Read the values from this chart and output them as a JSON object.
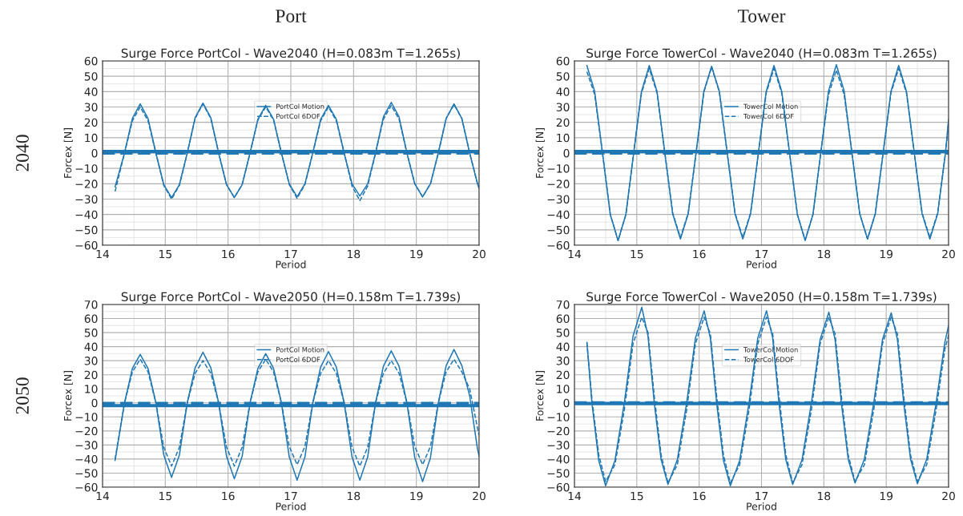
{
  "chart_data": [
    {
      "type": "line",
      "title": "Surge Force PortCol - Wave2040 (H=0.083m T=1.265s)",
      "xlabel": "Period",
      "ylabel": "Forcex [N]",
      "annotations": [
        "Port",
        "2040"
      ],
      "x": [
        14.2,
        14.35,
        14.475,
        14.6,
        14.725,
        14.85,
        14.975,
        15.1,
        15.225,
        15.35,
        15.475,
        15.6,
        15.725,
        15.85,
        15.975,
        16.1,
        16.225,
        16.35,
        16.475,
        16.6,
        16.725,
        16.85,
        16.975,
        17.1,
        17.225,
        17.35,
        17.475,
        17.6,
        17.725,
        17.85,
        17.975,
        18.1,
        18.225,
        18.35,
        18.475,
        18.6,
        18.725,
        18.85,
        18.975,
        19.1,
        19.225,
        19.35,
        19.475,
        19.6,
        19.725,
        19.85,
        19.975,
        20.0
      ],
      "series": [
        {
          "name": "PortCol Motion",
          "color": "#1f77b4",
          "line_style": "solid",
          "values": [
            -22,
            0,
            22.5,
            32,
            22.5,
            0,
            -20.5,
            -29,
            -20.5,
            0,
            23,
            32.5,
            23,
            0,
            -20.5,
            -29,
            -20.5,
            0,
            22,
            31,
            22,
            0,
            -20,
            -28.5,
            -20,
            0,
            22,
            31,
            22,
            0,
            -20,
            -28,
            -20,
            0,
            23.5,
            33,
            23.5,
            0,
            -20,
            -28.5,
            -20,
            0,
            22.5,
            32,
            22.5,
            0,
            -20,
            -23
          ]
        },
        {
          "name": "PortCol 6DOF",
          "color": "#1f77b4",
          "line_style": "dashed",
          "values": [
            -25,
            0,
            21,
            30,
            21,
            0,
            -21,
            -30,
            -21,
            0,
            22.5,
            32,
            22.5,
            0,
            -20.5,
            -29,
            -20.5,
            0,
            21.5,
            30,
            21.5,
            0,
            -20.5,
            -29.5,
            -20.5,
            0,
            21,
            30,
            21,
            0,
            -21.5,
            -31,
            -21.5,
            0,
            22,
            31,
            22,
            0,
            -20,
            -28.5,
            -20,
            0,
            22.5,
            31.5,
            22.5,
            0,
            -20,
            -23
          ]
        }
      ],
      "ref_lines": [
        {
          "axis": "y",
          "value": 1,
          "color": "#1f77b4",
          "line_style": "solid"
        },
        {
          "axis": "y",
          "value": 0,
          "color": "#1f77b4",
          "line_style": "dashed"
        }
      ],
      "xlim": [
        14,
        20
      ],
      "xticks": [
        14,
        15,
        16,
        17,
        18,
        19,
        20
      ],
      "ylim": [
        -60,
        60
      ],
      "yticks": [
        -60,
        -50,
        -40,
        -30,
        -20,
        -10,
        0,
        10,
        20,
        30,
        40,
        50,
        60
      ],
      "grid": true,
      "legend": "top"
    },
    {
      "type": "line",
      "title": "Surge Force TowerCol - Wave2040 (H=0.083m T=1.265s)",
      "xlabel": "Period",
      "ylabel": "Forcex [N]",
      "annotations": [
        "Tower"
      ],
      "x": [
        14.2,
        14.325,
        14.45,
        14.575,
        14.7,
        14.825,
        14.95,
        15.075,
        15.2,
        15.325,
        15.45,
        15.575,
        15.7,
        15.825,
        15.95,
        16.075,
        16.2,
        16.325,
        16.45,
        16.575,
        16.7,
        16.825,
        16.95,
        17.075,
        17.2,
        17.325,
        17.45,
        17.575,
        17.7,
        17.825,
        17.95,
        18.075,
        18.2,
        18.325,
        18.45,
        18.575,
        18.7,
        18.825,
        18.95,
        19.075,
        19.2,
        19.325,
        19.45,
        19.575,
        19.7,
        19.825,
        19.95,
        20.0
      ],
      "series": [
        {
          "name": "TowerCol Motion",
          "color": "#1f77b4",
          "line_style": "solid",
          "values": [
            57,
            40,
            0,
            -40,
            -57,
            -40,
            0,
            40,
            57,
            40,
            0,
            -39.5,
            -56,
            -39.5,
            0,
            40,
            56.5,
            40,
            0,
            -39.5,
            -56,
            -39.5,
            0,
            40,
            57,
            40,
            0,
            -40,
            -57,
            -40,
            0,
            40.5,
            57.5,
            40.5,
            0,
            -39.5,
            -56,
            -39.5,
            0,
            40,
            57,
            40,
            0,
            -39.5,
            -56,
            -39.5,
            0,
            22
          ]
        },
        {
          "name": "TowerCol 6DOF",
          "color": "#1f77b4",
          "line_style": "dashed",
          "values": [
            53,
            38,
            0,
            -40,
            -57,
            -40,
            0,
            39,
            55,
            39,
            0,
            -39,
            -55,
            -39,
            0,
            39.5,
            56,
            39.5,
            0,
            -39,
            -55,
            -39,
            0,
            39,
            55,
            39,
            0,
            -40,
            -56.5,
            -40,
            0,
            38,
            54,
            38,
            0,
            -39.5,
            -56,
            -39.5,
            0,
            39,
            55,
            39,
            0,
            -39,
            -55,
            -39,
            0,
            20
          ]
        }
      ],
      "ref_lines": [
        {
          "axis": "y",
          "value": 1,
          "color": "#1f77b4",
          "line_style": "solid"
        },
        {
          "axis": "y",
          "value": 0,
          "color": "#1f77b4",
          "line_style": "dashed"
        }
      ],
      "xlim": [
        14,
        20
      ],
      "xticks": [
        14,
        15,
        16,
        17,
        18,
        19,
        20
      ],
      "ylim": [
        -60,
        60
      ],
      "yticks": [
        -60,
        -50,
        -40,
        -30,
        -20,
        -10,
        0,
        10,
        20,
        30,
        40,
        50,
        60
      ],
      "grid": true,
      "legend": "top"
    },
    {
      "type": "line",
      "title": "Surge Force PortCol - Wave2050 (H=0.158m T=1.739s)",
      "xlabel": "Period",
      "ylabel": "Forcex [N]",
      "annotations": [
        "2050"
      ],
      "x": [
        14.2,
        14.35,
        14.475,
        14.6,
        14.725,
        14.85,
        14.975,
        15.1,
        15.225,
        15.35,
        15.475,
        15.6,
        15.725,
        15.85,
        15.975,
        16.1,
        16.225,
        16.35,
        16.475,
        16.6,
        16.725,
        16.85,
        16.975,
        17.1,
        17.225,
        17.35,
        17.475,
        17.6,
        17.725,
        17.85,
        17.975,
        18.1,
        18.225,
        18.35,
        18.475,
        18.6,
        18.725,
        18.85,
        18.975,
        19.1,
        19.225,
        19.35,
        19.475,
        19.6,
        19.725,
        19.85,
        19.975,
        20.0
      ],
      "series": [
        {
          "name": "PortCol Motion",
          "color": "#1f77b4",
          "line_style": "solid",
          "values": [
            -41,
            0,
            24.5,
            34.5,
            24.5,
            0,
            -37,
            -53,
            -37,
            0,
            25,
            36,
            25,
            0,
            -38,
            -54,
            -38,
            0,
            24.5,
            35,
            24.5,
            0,
            -38.5,
            -55,
            -38.5,
            0,
            25.5,
            36.5,
            25.5,
            0,
            -38.5,
            -55,
            -38.5,
            0,
            26,
            37,
            26,
            0,
            -39,
            -56,
            -39,
            0,
            26.5,
            38,
            26.5,
            5,
            -33,
            -38
          ]
        },
        {
          "name": "PortCol 6DOF",
          "color": "#1f77b4",
          "line_style": "dashed",
          "values": [
            -40,
            0,
            22,
            31,
            22,
            0,
            -31.5,
            -45,
            -31.5,
            0,
            21,
            30,
            21,
            0,
            -31.5,
            -45,
            -31.5,
            0,
            22,
            31,
            22,
            0,
            -31,
            -44,
            -31,
            0,
            21,
            30,
            21,
            0,
            -31.5,
            -45,
            -31.5,
            0,
            21,
            30,
            21,
            0,
            -31,
            -44,
            -31,
            0,
            22,
            31,
            22,
            10,
            -18,
            -23
          ]
        }
      ],
      "ref_lines": [
        {
          "axis": "y",
          "value": -2,
          "color": "#1f77b4",
          "line_style": "solid"
        },
        {
          "axis": "y",
          "value": -0.5,
          "color": "#1f77b4",
          "line_style": "dashed"
        }
      ],
      "xlim": [
        14,
        20
      ],
      "xticks": [
        14,
        15,
        16,
        17,
        18,
        19,
        20
      ],
      "ylim": [
        -60,
        70
      ],
      "yticks": [
        -60,
        -50,
        -40,
        -30,
        -20,
        -10,
        0,
        10,
        20,
        30,
        40,
        50,
        60,
        70
      ],
      "grid": true,
      "legend": "top"
    },
    {
      "type": "line",
      "title": "Surge Force TowerCol - Wave2050 (H=0.158m T=1.739s)",
      "xlabel": "Period",
      "ylabel": "Forcex [N]",
      "x": [
        14.2,
        14.28,
        14.39,
        14.5,
        14.65,
        14.8,
        14.94,
        15.08,
        15.18,
        15.28,
        15.39,
        15.5,
        15.65,
        15.8,
        15.94,
        16.08,
        16.18,
        16.28,
        16.39,
        16.5,
        16.65,
        16.8,
        16.94,
        17.08,
        17.18,
        17.28,
        17.39,
        17.5,
        17.65,
        17.8,
        17.94,
        18.08,
        18.18,
        18.28,
        18.39,
        18.5,
        18.65,
        18.8,
        18.94,
        19.08,
        19.18,
        19.28,
        19.39,
        19.5,
        19.65,
        19.8,
        19.94,
        20.0
      ],
      "series": [
        {
          "name": "TowerCol Motion",
          "color": "#1f77b4",
          "line_style": "solid",
          "values": [
            43,
            0,
            -41,
            -59,
            -41,
            0,
            47.5,
            68,
            47.5,
            0,
            -40.5,
            -58,
            -40.5,
            0,
            46,
            65.5,
            46,
            0,
            -41,
            -59,
            -41,
            0,
            46,
            65.5,
            46,
            0,
            -40.5,
            -58,
            -40.5,
            0,
            45,
            64.5,
            45,
            0,
            -40,
            -57,
            -40,
            0,
            45,
            64,
            45,
            0,
            -40,
            -57.5,
            -40,
            0,
            43,
            55
          ]
        },
        {
          "name": "TowerCol 6DOF",
          "color": "#1f77b4",
          "line_style": "dashed",
          "values": [
            43,
            3,
            -37,
            -56,
            -44,
            -5,
            42,
            61,
            50,
            5,
            -37,
            -57,
            -44,
            -5,
            42,
            61,
            49,
            5,
            -37,
            -57,
            -44,
            -5,
            42,
            61,
            49,
            5,
            -37,
            -57,
            -44,
            -5,
            42,
            61,
            49,
            5,
            -37,
            -56,
            -44,
            -5,
            42,
            61,
            49,
            5,
            -37,
            -56,
            -44,
            -5,
            38,
            48
          ]
        }
      ],
      "ref_lines": [
        {
          "axis": "y",
          "value": -0.5,
          "color": "#1f77b4",
          "line_style": "solid"
        },
        {
          "axis": "y",
          "value": 0,
          "color": "#1f77b4",
          "line_style": "dashed"
        }
      ],
      "xlim": [
        14,
        20
      ],
      "xticks": [
        14,
        15,
        16,
        17,
        18,
        19,
        20
      ],
      "ylim": [
        -60,
        70
      ],
      "yticks": [
        -60,
        -50,
        -40,
        -30,
        -20,
        -10,
        0,
        10,
        20,
        30,
        40,
        50,
        60,
        70
      ],
      "grid": true,
      "legend": "top"
    }
  ]
}
